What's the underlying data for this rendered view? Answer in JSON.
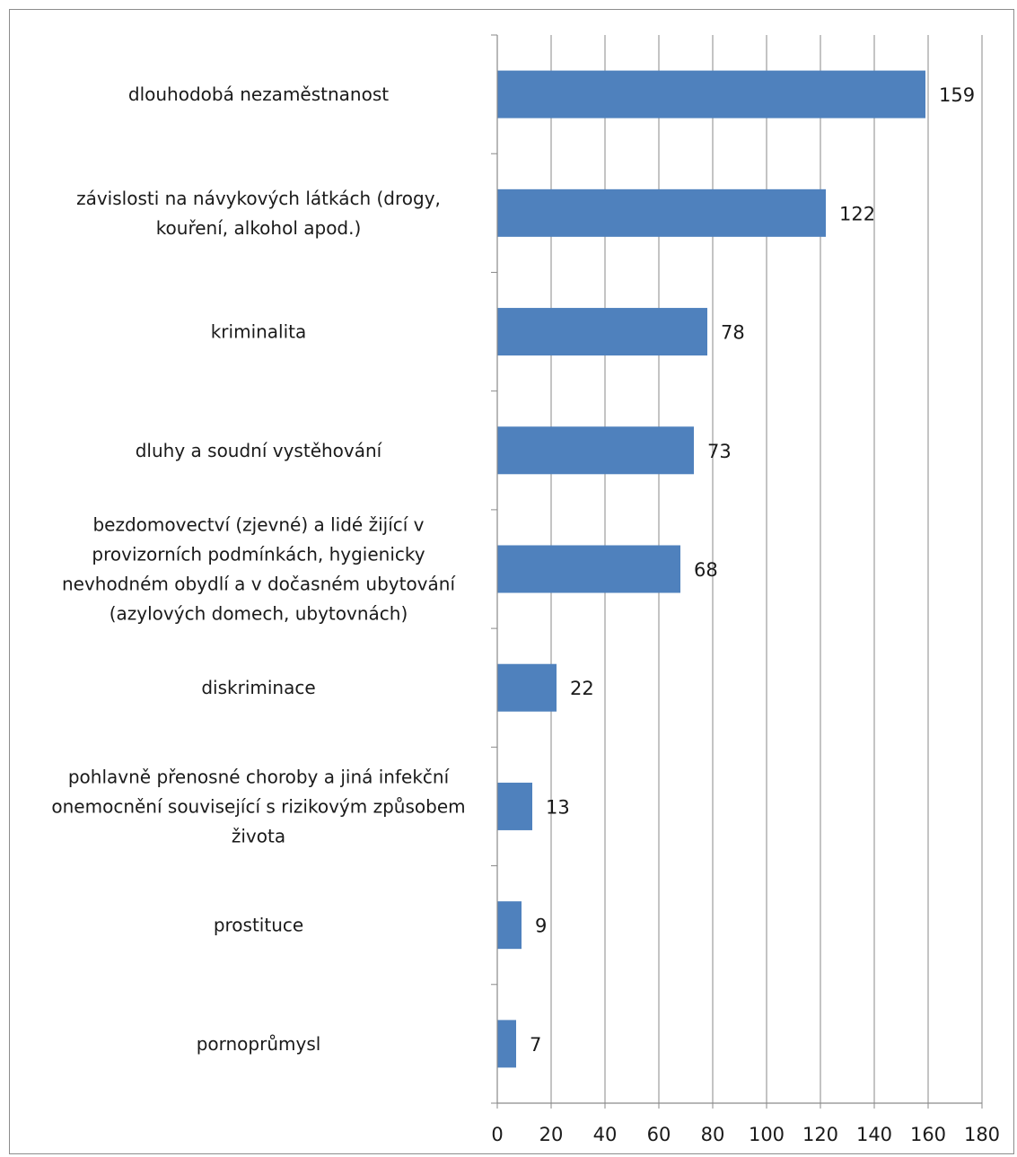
{
  "chart_data": {
    "type": "bar",
    "orientation": "horizontal",
    "title": "",
    "xlabel": "",
    "ylabel": "",
    "categories": [
      "dlouhodobá nezaměstnanost",
      "závislosti na návykových látkách (drogy, kouření, alkohol apod.)",
      "kriminalita",
      "dluhy a soudní vystěhování",
      "bezdomovectví (zjevné) a lidé žijící v provizorních podmínkách, hygienicky nevhodném obydlí a v dočasném ubytování (azylových domech, ubytovnách)",
      "diskriminace",
      "pohlavně přenosné choroby a jiná infekční onemocnění související s rizikovým způsobem života",
      "prostituce",
      "pornoprůmysl"
    ],
    "category_lines": [
      [
        "dlouhodobá nezaměstnanost"
      ],
      [
        "závislosti na návykových látkách (drogy,",
        "kouření, alkohol apod.)"
      ],
      [
        "kriminalita"
      ],
      [
        "dluhy a soudní vystěhování"
      ],
      [
        "bezdomovectví (zjevné) a lidé žijící v",
        "provizorních podmínkách, hygienicky",
        "nevhodném obydlí a v dočasném ubytování",
        "(azylových domech, ubytovnách)"
      ],
      [
        "diskriminace"
      ],
      [
        "pohlavně přenosné choroby a jiná infekční",
        "onemocnění související s rizikovým způsobem",
        "života"
      ],
      [
        "prostituce"
      ],
      [
        "pornoprůmysl"
      ]
    ],
    "values": [
      159,
      122,
      78,
      73,
      68,
      22,
      13,
      9,
      7
    ],
    "xlim": [
      0,
      180
    ],
    "x_ticks": [
      "0",
      "20",
      "40",
      "60",
      "80",
      "100",
      "120",
      "140",
      "160",
      "180"
    ],
    "grid": true,
    "legend": "none",
    "data_labels": true,
    "bar_color": "#4f81bd",
    "grid_color": "#8a8a8a"
  }
}
